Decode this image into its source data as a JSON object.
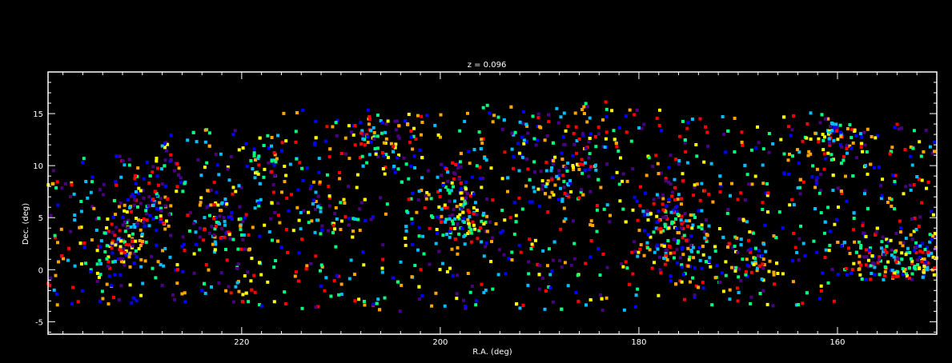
{
  "chart_data": {
    "type": "scatter",
    "title": "z = 0.096",
    "xlabel": "R.A. (deg)",
    "ylabel": "Dec. (deg)",
    "xlim": [
      239.5,
      150
    ],
    "ylim": [
      -6.2,
      19
    ],
    "x_axis_reversed": true,
    "x_ticks": [
      220,
      200,
      180,
      160
    ],
    "y_ticks": [
      -5,
      0,
      5,
      10,
      15
    ],
    "grid": false,
    "legend": "none",
    "background_color": "#000000",
    "axis_color": "#ffffff",
    "marker": "square",
    "color_scale": [
      "#4b0082",
      "#0000ff",
      "#00bfff",
      "#00ff80",
      "#ffff00",
      "#ffa500",
      "#ff0000"
    ],
    "point_count_estimate": 2600,
    "survey_footprint_dec_range_by_ra": [
      {
        "ra_min": 228,
        "ra_max": 239.5,
        "dec_min": -3.5,
        "dec_max": 11
      },
      {
        "ra_min": 216,
        "ra_max": 228,
        "dec_min": -3.5,
        "dec_max": 13.5
      },
      {
        "ra_min": 196,
        "ra_max": 216,
        "dec_min": -4,
        "dec_max": 15.5
      },
      {
        "ra_min": 176,
        "ra_max": 196,
        "dec_min": -4,
        "dec_max": 16.2
      },
      {
        "ra_min": 160,
        "ra_max": 176,
        "dec_min": -3.5,
        "dec_max": 15.2
      },
      {
        "ra_min": 150,
        "ra_max": 160,
        "dec_min": -1,
        "dec_max": 14
      }
    ],
    "concentrations": [
      {
        "ra": 232.5,
        "dec": 2.5,
        "weight": 3
      },
      {
        "ra": 229.5,
        "dec": 6,
        "weight": 2
      },
      {
        "ra": 228,
        "dec": 10,
        "weight": 1
      },
      {
        "ra": 222,
        "dec": 4.5,
        "weight": 2
      },
      {
        "ra": 217,
        "dec": 10.5,
        "weight": 1
      },
      {
        "ra": 212,
        "dec": 5.5,
        "weight": 1
      },
      {
        "ra": 206,
        "dec": 12.5,
        "weight": 2
      },
      {
        "ra": 199,
        "dec": 8,
        "weight": 2
      },
      {
        "ra": 198,
        "dec": 4.5,
        "weight": 2
      },
      {
        "ra": 191,
        "dec": 12.5,
        "weight": 1
      },
      {
        "ra": 187,
        "dec": 9,
        "weight": 2
      },
      {
        "ra": 185,
        "dec": 13,
        "weight": 1
      },
      {
        "ra": 177,
        "dec": 5,
        "weight": 3
      },
      {
        "ra": 175,
        "dec": 2,
        "weight": 2
      },
      {
        "ra": 169,
        "dec": 0.5,
        "weight": 2
      },
      {
        "ra": 160,
        "dec": 12.5,
        "weight": 3
      },
      {
        "ra": 156,
        "dec": 0.5,
        "weight": 3
      },
      {
        "ra": 152,
        "dec": 0.5,
        "weight": 3
      }
    ]
  }
}
